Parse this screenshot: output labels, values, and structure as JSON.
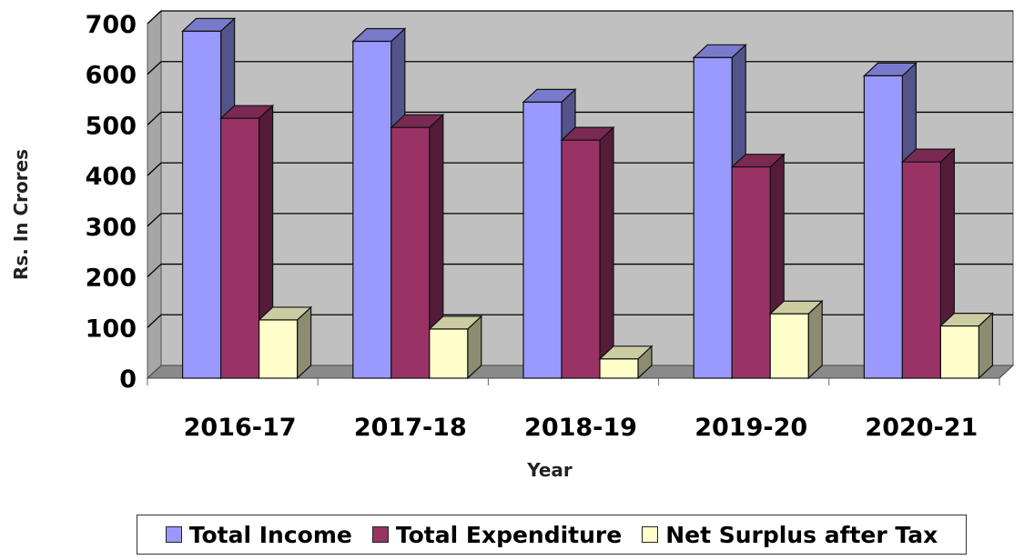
{
  "chart_data": {
    "type": "bar",
    "title": "",
    "xlabel": "Year",
    "ylabel": "Rs. In Crores",
    "categories": [
      "2016-17",
      "2017-18",
      "2018-19",
      "2019-20",
      "2020-21"
    ],
    "ylim": [
      0,
      700
    ],
    "yticks": [
      0,
      100,
      200,
      300,
      400,
      500,
      600,
      700
    ],
    "grid": true,
    "legend_position": "bottom",
    "series": [
      {
        "name": "Total Income",
        "values": [
          685,
          665,
          545,
          633,
          597
        ],
        "color": "#9999ff"
      },
      {
        "name": "Total Expenditure",
        "values": [
          513,
          495,
          470,
          417,
          427
        ],
        "color": "#993366"
      },
      {
        "name": "Net Surplus after Tax",
        "values": [
          115,
          97,
          38,
          127,
          103
        ],
        "color": "#ffffcc"
      }
    ]
  }
}
